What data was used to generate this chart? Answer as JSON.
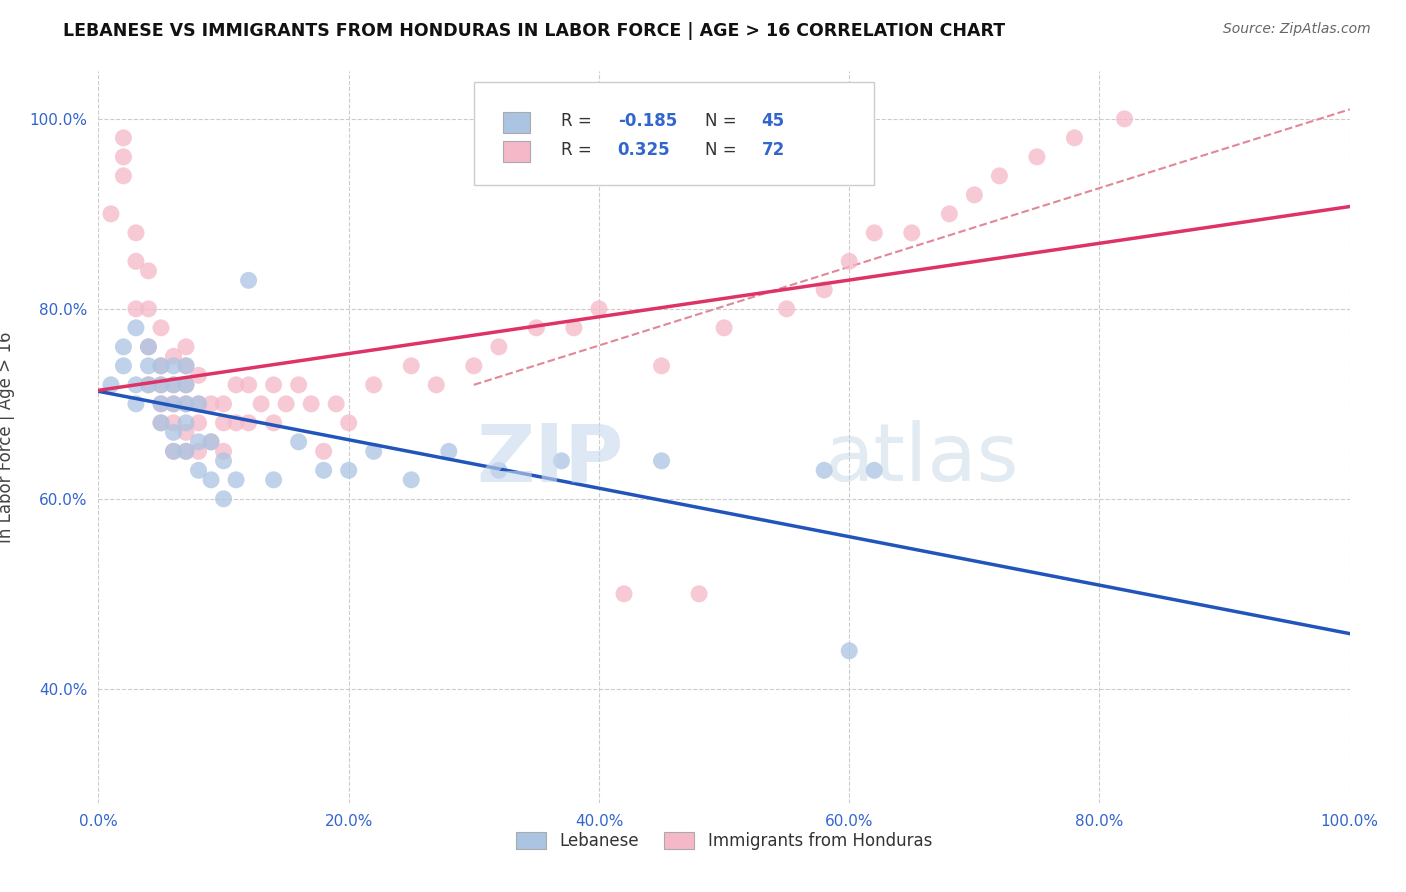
{
  "title": "LEBANESE VS IMMIGRANTS FROM HONDURAS IN LABOR FORCE | AGE > 16 CORRELATION CHART",
  "source": "Source: ZipAtlas.com",
  "ylabel": "In Labor Force | Age > 16",
  "xlim": [
    0.0,
    1.0
  ],
  "ylim": [
    0.28,
    1.05
  ],
  "x_ticks": [
    0.0,
    0.2,
    0.4,
    0.6,
    0.8,
    1.0
  ],
  "x_tick_labels": [
    "0.0%",
    "20.0%",
    "40.0%",
    "60.0%",
    "80.0%",
    "100.0%"
  ],
  "y_ticks": [
    0.4,
    0.6,
    0.8,
    1.0
  ],
  "y_tick_labels": [
    "40.0%",
    "60.0%",
    "80.0%",
    "100.0%"
  ],
  "legend_labels": [
    "Lebanese",
    "Immigrants from Honduras"
  ],
  "blue_R": -0.185,
  "blue_N": 45,
  "pink_R": 0.325,
  "pink_N": 72,
  "blue_color": "#aac4e2",
  "pink_color": "#f5b8c8",
  "blue_line_color": "#2255bb",
  "pink_line_color": "#dd3366",
  "dashed_line_color": "#e08898",
  "watermark_zip": "ZIP",
  "watermark_atlas": "atlas",
  "blue_scatter_x": [
    0.01,
    0.02,
    0.02,
    0.03,
    0.03,
    0.03,
    0.04,
    0.04,
    0.04,
    0.05,
    0.05,
    0.05,
    0.05,
    0.06,
    0.06,
    0.06,
    0.06,
    0.06,
    0.07,
    0.07,
    0.07,
    0.07,
    0.07,
    0.08,
    0.08,
    0.08,
    0.09,
    0.09,
    0.1,
    0.1,
    0.11,
    0.12,
    0.14,
    0.16,
    0.18,
    0.2,
    0.22,
    0.25,
    0.28,
    0.32,
    0.37,
    0.45,
    0.58,
    0.6,
    0.62
  ],
  "blue_scatter_y": [
    0.72,
    0.74,
    0.76,
    0.7,
    0.72,
    0.78,
    0.72,
    0.74,
    0.76,
    0.68,
    0.7,
    0.72,
    0.74,
    0.65,
    0.67,
    0.7,
    0.72,
    0.74,
    0.65,
    0.68,
    0.7,
    0.72,
    0.74,
    0.63,
    0.66,
    0.7,
    0.62,
    0.66,
    0.6,
    0.64,
    0.62,
    0.83,
    0.62,
    0.66,
    0.63,
    0.63,
    0.65,
    0.62,
    0.65,
    0.63,
    0.64,
    0.64,
    0.63,
    0.44,
    0.63
  ],
  "pink_scatter_x": [
    0.01,
    0.02,
    0.02,
    0.02,
    0.03,
    0.03,
    0.03,
    0.04,
    0.04,
    0.04,
    0.04,
    0.05,
    0.05,
    0.05,
    0.05,
    0.05,
    0.06,
    0.06,
    0.06,
    0.06,
    0.06,
    0.07,
    0.07,
    0.07,
    0.07,
    0.07,
    0.07,
    0.08,
    0.08,
    0.08,
    0.08,
    0.09,
    0.09,
    0.1,
    0.1,
    0.1,
    0.11,
    0.11,
    0.12,
    0.12,
    0.13,
    0.14,
    0.14,
    0.15,
    0.16,
    0.17,
    0.18,
    0.19,
    0.2,
    0.22,
    0.25,
    0.27,
    0.3,
    0.32,
    0.35,
    0.38,
    0.4,
    0.42,
    0.45,
    0.48,
    0.5,
    0.55,
    0.58,
    0.6,
    0.62,
    0.65,
    0.68,
    0.7,
    0.72,
    0.75,
    0.78,
    0.82
  ],
  "pink_scatter_y": [
    0.9,
    0.94,
    0.96,
    0.98,
    0.8,
    0.85,
    0.88,
    0.72,
    0.76,
    0.8,
    0.84,
    0.68,
    0.7,
    0.72,
    0.74,
    0.78,
    0.65,
    0.68,
    0.7,
    0.72,
    0.75,
    0.65,
    0.67,
    0.7,
    0.72,
    0.74,
    0.76,
    0.65,
    0.68,
    0.7,
    0.73,
    0.66,
    0.7,
    0.65,
    0.68,
    0.7,
    0.68,
    0.72,
    0.68,
    0.72,
    0.7,
    0.68,
    0.72,
    0.7,
    0.72,
    0.7,
    0.65,
    0.7,
    0.68,
    0.72,
    0.74,
    0.72,
    0.74,
    0.76,
    0.78,
    0.78,
    0.8,
    0.5,
    0.74,
    0.5,
    0.78,
    0.8,
    0.82,
    0.85,
    0.88,
    0.88,
    0.9,
    0.92,
    0.94,
    0.96,
    0.98,
    1.0
  ]
}
